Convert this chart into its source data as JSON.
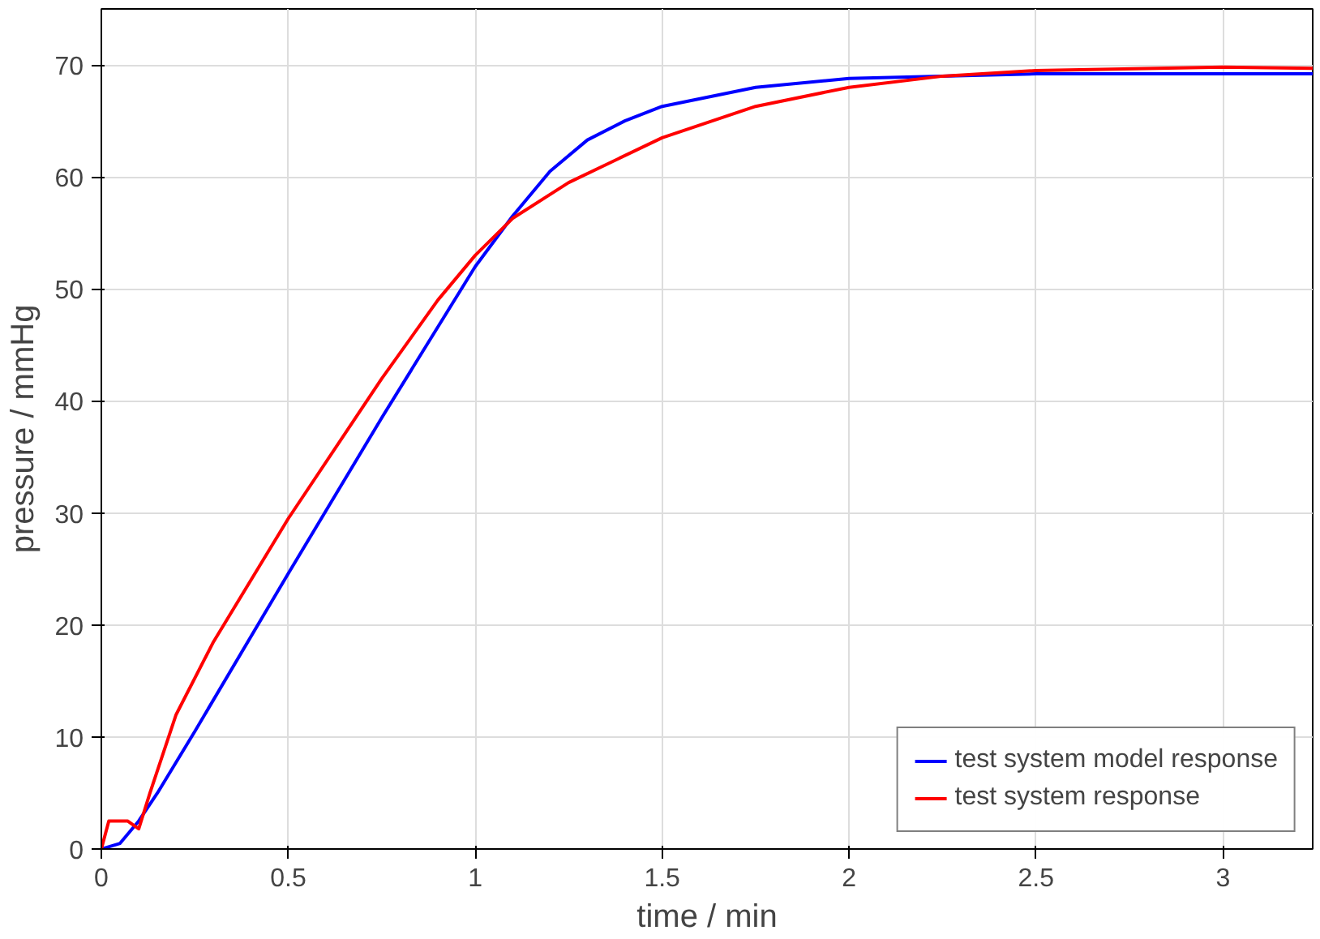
{
  "chart_data": {
    "type": "line",
    "xlabel": "time / min",
    "ylabel": "pressure / mmHg",
    "xlim": [
      0,
      3.24
    ],
    "ylim": [
      0,
      75
    ],
    "xticks": [
      0,
      0.5,
      1,
      1.5,
      2,
      2.5,
      3
    ],
    "yticks": [
      0,
      10,
      20,
      30,
      40,
      50,
      60,
      70
    ],
    "grid": true,
    "legend": "bottom right",
    "marker": "none",
    "line_style": "solid",
    "series": [
      {
        "name": "test system model response",
        "color": "#0000ff",
        "x": [
          0,
          0.05,
          0.1,
          0.15,
          0.25,
          0.5,
          0.75,
          1.0,
          1.1,
          1.2,
          1.3,
          1.4,
          1.5,
          1.75,
          2.0,
          2.5,
          3.0,
          3.24
        ],
        "values": [
          0,
          0.5,
          2.5,
          5,
          10.5,
          24.6,
          38.5,
          52,
          56.5,
          60.5,
          63.3,
          65,
          66.3,
          68,
          68.8,
          69.2,
          69.2,
          69.2
        ]
      },
      {
        "name": "test system response",
        "color": "#ff0000",
        "x": [
          0,
          0.02,
          0.07,
          0.1,
          0.13,
          0.2,
          0.3,
          0.5,
          0.75,
          0.9,
          1.0,
          1.1,
          1.25,
          1.5,
          1.75,
          2.0,
          2.25,
          2.5,
          3.0,
          3.24
        ],
        "values": [
          0,
          2.5,
          2.5,
          1.8,
          5,
          12,
          18.5,
          29.5,
          42,
          49,
          53,
          56.3,
          59.5,
          63.5,
          66.3,
          68,
          69,
          69.5,
          69.8,
          69.7
        ]
      }
    ]
  }
}
